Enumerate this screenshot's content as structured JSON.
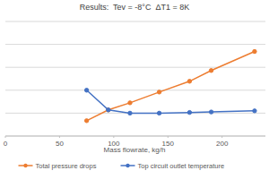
{
  "chart_data": {
    "type": "line",
    "title": "Results:  Tev = -8°C  ΔT1 = 8K",
    "x_label": "Mass flowrate, kg/h",
    "x": [
      75,
      95,
      115,
      142,
      170,
      190,
      230
    ],
    "series": [
      {
        "name": "Total pressure drops",
        "color": "#ed7d31",
        "marker": "circle",
        "values": [
          0.67,
          1.14,
          1.45,
          1.92,
          2.39,
          2.86,
          3.69
        ]
      },
      {
        "name": "Top circuit outlet temperature",
        "color": "#4472c4",
        "marker": "circle",
        "values": [
          2.0,
          1.14,
          1.0,
          1.0,
          1.03,
          1.05,
          1.1
        ]
      }
    ],
    "xlim": [
      0,
      240
    ],
    "xticks": [
      0,
      50,
      100,
      150,
      200
    ],
    "ylim": [
      0,
      5
    ],
    "yticks": [
      0,
      1,
      2,
      3,
      4,
      5
    ],
    "grid": true,
    "legend": "bottom",
    "tick_labels": "x"
  }
}
